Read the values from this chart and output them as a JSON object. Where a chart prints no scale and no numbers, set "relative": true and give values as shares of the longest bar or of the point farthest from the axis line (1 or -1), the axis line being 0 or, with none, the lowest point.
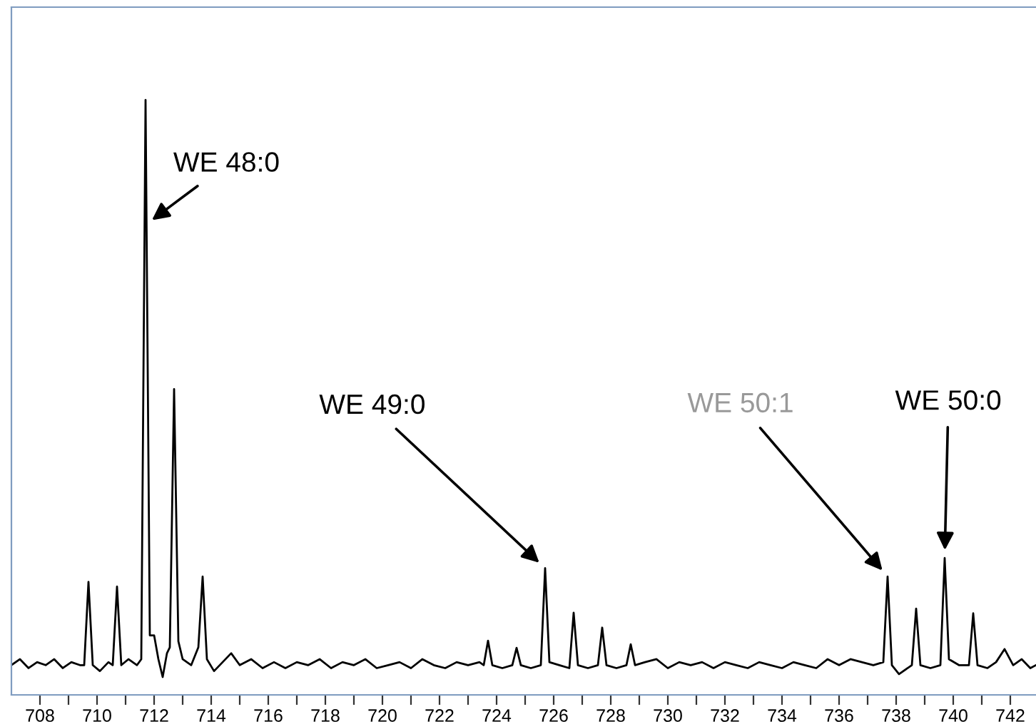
{
  "chart_data": {
    "type": "line",
    "relative": true,
    "grid": false,
    "marker": "none",
    "line_style": "solid",
    "tick_labels": "x",
    "xlim": [
      707.0,
      742.9
    ],
    "xticks": [
      708,
      {
        "value": 709,
        "label": null
      },
      710,
      {
        "value": 711,
        "label": null
      },
      712,
      {
        "value": 713,
        "label": null
      },
      714,
      {
        "value": 715,
        "label": null
      },
      716,
      {
        "value": 717,
        "label": null
      },
      718,
      {
        "value": 719,
        "label": null
      },
      720,
      {
        "value": 721,
        "label": null
      },
      722,
      {
        "value": 723,
        "label": null
      },
      724,
      {
        "value": 725,
        "label": null
      },
      726,
      {
        "value": 727,
        "label": null
      },
      728,
      {
        "value": 729,
        "label": null
      },
      730,
      {
        "value": 731,
        "label": null
      },
      732,
      {
        "value": 733,
        "label": null
      },
      734,
      {
        "value": 735,
        "label": null
      },
      736,
      {
        "value": 737,
        "label": null
      },
      738,
      {
        "value": 739,
        "label": null
      },
      740,
      {
        "value": 741,
        "label": null
      },
      742
    ],
    "series": [
      {
        "color": "#000000",
        "x": [
          707.0,
          707.3,
          707.6,
          707.9,
          708.2,
          708.5,
          708.8,
          709.1,
          709.4,
          709.55,
          709.7,
          709.85,
          710.1,
          710.4,
          710.55,
          710.7,
          710.85,
          711.1,
          711.4,
          711.55,
          711.7,
          711.85,
          712.0,
          712.15,
          712.3,
          712.45,
          712.55,
          712.7,
          712.85,
          713.0,
          713.3,
          713.55,
          713.7,
          713.85,
          714.1,
          714.4,
          714.7,
          715.0,
          715.4,
          715.8,
          716.2,
          716.6,
          717.0,
          717.4,
          717.8,
          718.2,
          718.6,
          719.0,
          719.4,
          719.8,
          720.2,
          720.6,
          721.0,
          721.4,
          721.8,
          722.2,
          722.6,
          723.0,
          723.4,
          723.55,
          723.7,
          723.85,
          724.2,
          724.55,
          724.7,
          724.85,
          725.2,
          725.55,
          725.7,
          725.85,
          726.2,
          726.55,
          726.7,
          726.85,
          727.2,
          727.55,
          727.7,
          727.85,
          728.2,
          728.55,
          728.7,
          728.85,
          729.2,
          729.6,
          730.0,
          730.4,
          730.8,
          731.2,
          731.6,
          732.0,
          732.4,
          732.8,
          733.2,
          733.6,
          734.0,
          734.4,
          734.8,
          735.2,
          735.6,
          736.0,
          736.4,
          736.8,
          737.2,
          737.55,
          737.7,
          737.85,
          738.1,
          738.55,
          738.7,
          738.85,
          739.2,
          739.55,
          739.7,
          739.85,
          740.2,
          740.55,
          740.7,
          740.85,
          741.2,
          741.5,
          741.8,
          742.1,
          742.4,
          742.7,
          742.9
        ],
        "values": [
          0.05,
          0.06,
          0.045,
          0.055,
          0.05,
          0.06,
          0.045,
          0.055,
          0.05,
          0.05,
          0.19,
          0.05,
          0.04,
          0.055,
          0.05,
          0.182,
          0.05,
          0.06,
          0.05,
          0.06,
          1.0,
          0.1,
          0.1,
          0.06,
          0.03,
          0.07,
          0.08,
          0.514,
          0.09,
          0.06,
          0.05,
          0.08,
          0.199,
          0.06,
          0.04,
          0.055,
          0.07,
          0.05,
          0.06,
          0.045,
          0.055,
          0.045,
          0.055,
          0.05,
          0.06,
          0.045,
          0.055,
          0.05,
          0.06,
          0.045,
          0.05,
          0.055,
          0.045,
          0.06,
          0.05,
          0.045,
          0.055,
          0.05,
          0.055,
          0.05,
          0.091,
          0.05,
          0.045,
          0.05,
          0.079,
          0.05,
          0.045,
          0.05,
          0.213,
          0.055,
          0.05,
          0.045,
          0.138,
          0.05,
          0.045,
          0.05,
          0.113,
          0.05,
          0.045,
          0.05,
          0.085,
          0.05,
          0.055,
          0.06,
          0.045,
          0.055,
          0.05,
          0.055,
          0.045,
          0.055,
          0.05,
          0.045,
          0.055,
          0.05,
          0.045,
          0.055,
          0.05,
          0.045,
          0.06,
          0.05,
          0.06,
          0.055,
          0.05,
          0.055,
          0.199,
          0.05,
          0.035,
          0.05,
          0.145,
          0.05,
          0.045,
          0.05,
          0.23,
          0.06,
          0.05,
          0.05,
          0.137,
          0.05,
          0.045,
          0.055,
          0.077,
          0.05,
          0.06,
          0.045,
          0.05
        ]
      }
    ],
    "annotations": [
      {
        "text": "WE 48:0",
        "x": 711.7,
        "y": 0.79
      },
      {
        "text": "WE 49:0",
        "x": 725.7,
        "y": 0.213
      },
      {
        "text": "WE 50:1",
        "x": 737.7,
        "y": 0.199
      },
      {
        "text": "WE 50:0",
        "x": 739.7,
        "y": 0.23
      }
    ]
  }
}
